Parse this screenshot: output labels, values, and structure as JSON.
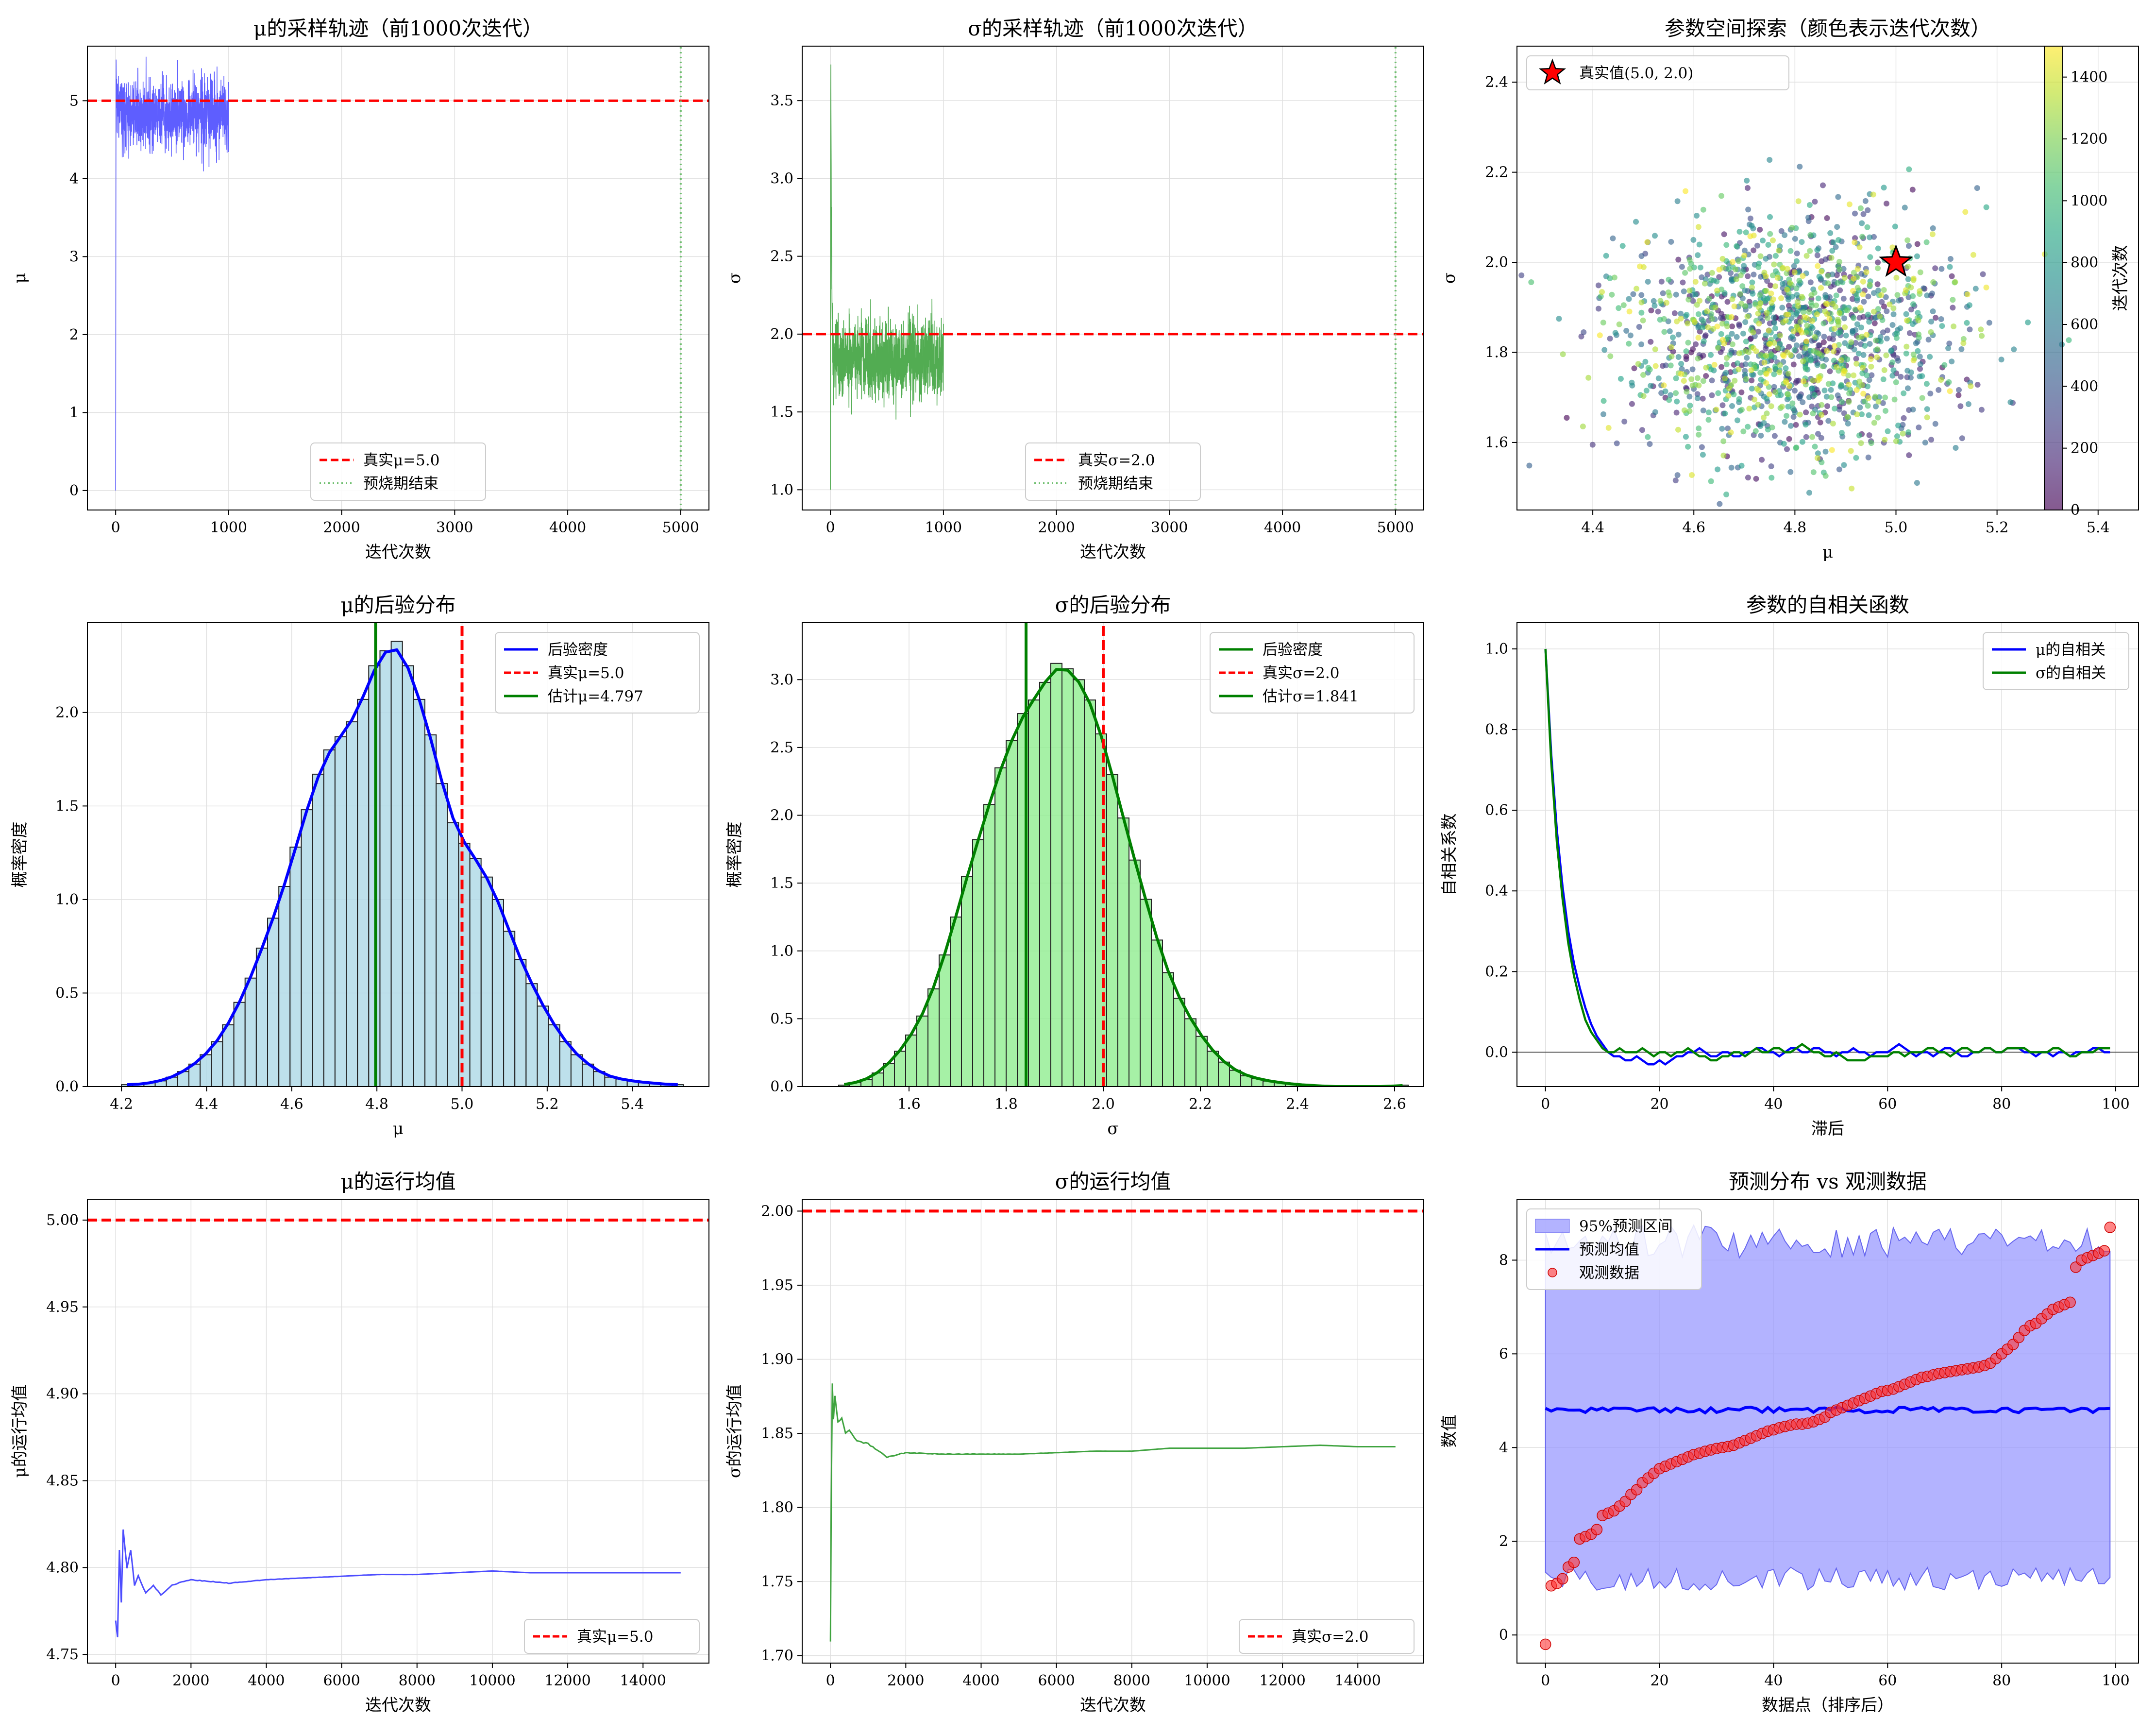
{
  "colors": {
    "mu_trace": "#4d4dff",
    "sigma_trace": "#3fa33f",
    "true_line": "#ff0000",
    "burnin_line": "#6fbf6f",
    "mu_hist": "#add8e6",
    "sigma_hist": "#90ee90",
    "mu_kde": "#0000ff",
    "sigma_kde": "#008000",
    "estimate": "#008000",
    "pi_fill": "#9999ff",
    "pred_mean": "#0000ff",
    "obs": "#ff3333",
    "grid": "#e0e0e0"
  },
  "chart_data": [
    {
      "id": "mu_trace",
      "type": "line",
      "title": "μ的采样轨迹（前1000次迭代）",
      "xlabel": "迭代次数",
      "ylabel": "μ",
      "xlim": [
        -250,
        5250
      ],
      "ylim": [
        -0.25,
        5.7
      ],
      "xticks": [
        0,
        1000,
        2000,
        3000,
        4000,
        5000
      ],
      "yticks": [
        0,
        1,
        2,
        3,
        4,
        5
      ],
      "grid": true,
      "series": [
        {
          "name": "",
          "kind": "trace",
          "x_range": [
            0,
            1000
          ],
          "start": 0.0,
          "rise_end": 5.2,
          "mean": 4.83,
          "spread": 0.22,
          "spikes": [
            5.42,
            4.48,
            5.28,
            4.4
          ]
        },
        {
          "name": "真实μ=5.0",
          "kind": "hline",
          "y": 5.0
        },
        {
          "name": "预烧期结束",
          "kind": "vline",
          "x": 5000
        }
      ],
      "legend_position": "lower-center"
    },
    {
      "id": "sigma_trace",
      "type": "line",
      "title": "σ的采样轨迹（前1000次迭代）",
      "xlabel": "迭代次数",
      "ylabel": "σ",
      "xlim": [
        -250,
        5250
      ],
      "ylim": [
        0.87,
        3.85
      ],
      "xticks": [
        0,
        1000,
        2000,
        3000,
        4000,
        5000
      ],
      "yticks": [
        1.0,
        1.5,
        2.0,
        2.5,
        3.0,
        3.5
      ],
      "grid": true,
      "series": [
        {
          "name": "",
          "kind": "trace",
          "x_range": [
            0,
            1000
          ],
          "start": 1.0,
          "rise_end": 3.67,
          "mean": 1.84,
          "spread": 0.13,
          "spikes": [
            2.25,
            1.5,
            2.2,
            1.55
          ]
        },
        {
          "name": "真实σ=2.0",
          "kind": "hline",
          "y": 2.0
        },
        {
          "name": "预烧期结束",
          "kind": "vline",
          "x": 5000
        }
      ],
      "legend_position": "lower-center"
    },
    {
      "id": "param_space",
      "type": "scatter",
      "title": "参数空间探索（颜色表示迭代次数）",
      "xlabel": "μ",
      "ylabel": "σ",
      "xlim": [
        4.25,
        5.48
      ],
      "ylim": [
        1.45,
        2.48
      ],
      "xticks": [
        4.4,
        4.6,
        4.8,
        5.0,
        5.2,
        5.4
      ],
      "yticks": [
        1.6,
        1.8,
        2.0,
        2.2,
        2.4
      ],
      "grid": true,
      "points": {
        "n": 1500,
        "mu_mean": 4.797,
        "mu_sd": 0.17,
        "sigma_mean": 1.841,
        "sigma_sd": 0.13
      },
      "true_point": {
        "name": "真实值(5.0, 2.0)",
        "x": 5.0,
        "y": 2.0
      },
      "colorbar": {
        "label": "迭代次数",
        "range": [
          0,
          1500
        ],
        "ticks": [
          0,
          200,
          400,
          600,
          800,
          1000,
          1200,
          1400
        ]
      },
      "legend_position": "upper-left"
    },
    {
      "id": "mu_posterior",
      "type": "bar",
      "title": "μ的后验分布",
      "xlabel": "μ",
      "ylabel": "概率密度",
      "xlim": [
        4.12,
        5.58
      ],
      "ylim": [
        0,
        2.48
      ],
      "xticks": [
        4.2,
        4.4,
        4.6,
        4.8,
        5.0,
        5.2,
        5.4
      ],
      "yticks": [
        0.0,
        0.5,
        1.0,
        1.5,
        2.0
      ],
      "grid": true,
      "bins": {
        "start": 4.2,
        "width": 0.0264
      },
      "values": [
        0.01,
        0.01,
        0.02,
        0.03,
        0.05,
        0.08,
        0.12,
        0.17,
        0.24,
        0.33,
        0.45,
        0.58,
        0.74,
        0.9,
        1.07,
        1.28,
        1.48,
        1.67,
        1.8,
        1.87,
        1.95,
        2.07,
        2.25,
        2.33,
        2.38,
        2.25,
        2.07,
        1.88,
        1.62,
        1.41,
        1.3,
        1.22,
        1.12,
        1.0,
        0.83,
        0.68,
        0.55,
        0.43,
        0.33,
        0.24,
        0.17,
        0.12,
        0.08,
        0.05,
        0.04,
        0.03,
        0.02,
        0.02,
        0.01,
        0.01
      ],
      "kde": {
        "name": "后验密度",
        "peak": 2.3,
        "center": 4.797
      },
      "true_line": {
        "name": "真实μ=5.0",
        "x": 5.0
      },
      "estimate_line": {
        "name": "估计μ=4.797",
        "x": 4.797
      },
      "legend_position": "upper-right"
    },
    {
      "id": "sigma_posterior",
      "type": "bar",
      "title": "σ的后验分布",
      "xlabel": "σ",
      "ylabel": "概率密度",
      "xlim": [
        1.38,
        2.66
      ],
      "ylim": [
        0,
        3.42
      ],
      "xticks": [
        1.6,
        1.8,
        2.0,
        2.2,
        2.4,
        2.6
      ],
      "yticks": [
        0.0,
        0.5,
        1.0,
        1.5,
        2.0,
        2.5,
        3.0
      ],
      "grid": true,
      "bins": {
        "start": 1.455,
        "width": 0.023
      },
      "values": [
        0.01,
        0.03,
        0.05,
        0.1,
        0.17,
        0.26,
        0.38,
        0.52,
        0.72,
        0.97,
        1.25,
        1.55,
        1.82,
        2.08,
        2.35,
        2.55,
        2.75,
        2.85,
        2.98,
        3.12,
        3.08,
        3.0,
        2.85,
        2.6,
        2.3,
        1.98,
        1.67,
        1.38,
        1.08,
        0.84,
        0.65,
        0.5,
        0.37,
        0.26,
        0.18,
        0.12,
        0.08,
        0.06,
        0.04,
        0.03,
        0.02,
        0.01,
        0.01,
        0.0,
        0.0,
        0.0,
        0.0,
        0.0,
        0.0,
        0.0,
        0.01
      ],
      "kde": {
        "name": "后验密度",
        "peak": 3.04,
        "center": 1.841
      },
      "true_line": {
        "name": "真实σ=2.0",
        "x": 2.0
      },
      "estimate_line": {
        "name": "估计σ=1.841",
        "x": 1.841
      },
      "legend_position": "upper-right"
    },
    {
      "id": "acf",
      "type": "line",
      "title": "参数的自相关函数",
      "xlabel": "滞后",
      "ylabel": "自相关系数",
      "xlim": [
        -5,
        104
      ],
      "ylim": [
        -0.085,
        1.065
      ],
      "xticks": [
        0,
        20,
        40,
        60,
        80,
        100
      ],
      "yticks": [
        0.0,
        0.2,
        0.4,
        0.6,
        0.8,
        1.0
      ],
      "grid": true,
      "series": [
        {
          "name": "μ的自相关",
          "color_key": "mu_kde",
          "values": [
            1.0,
            0.74,
            0.55,
            0.41,
            0.3,
            0.22,
            0.16,
            0.11,
            0.07,
            0.04,
            0.02,
            0.0,
            -0.01,
            -0.01,
            -0.02,
            -0.02,
            -0.01,
            -0.02,
            -0.03,
            -0.03,
            -0.02,
            -0.03,
            -0.02,
            -0.01,
            -0.01,
            0.0,
            0.0,
            0.01,
            0.0,
            -0.01,
            -0.01,
            0.0,
            0.0,
            -0.01,
            -0.01,
            0.0,
            0.0,
            0.01,
            0.01,
            0.0,
            0.0,
            -0.01,
            0.0,
            0.01,
            0.01,
            0.0,
            0.0,
            0.01,
            0.01,
            0.0,
            0.0,
            -0.01,
            0.0,
            0.0,
            0.01,
            0.0,
            0.0,
            -0.01,
            0.0,
            0.0,
            0.0,
            0.01,
            0.02,
            0.01,
            0.0,
            -0.01,
            0.0,
            0.0,
            -0.01,
            0.0,
            0.01,
            0.01,
            0.0,
            -0.01,
            -0.01,
            0.0,
            0.0,
            0.01,
            0.01,
            0.0,
            0.0,
            0.01,
            0.01,
            0.01,
            0.0,
            0.0,
            -0.01,
            0.0,
            0.0,
            -0.01,
            0.0,
            0.0,
            -0.01,
            0.0,
            0.0,
            0.0,
            0.01,
            0.01,
            0.0,
            0.0
          ]
        },
        {
          "name": "σ的自相关",
          "color_key": "sigma_kde",
          "values": [
            1.0,
            0.72,
            0.52,
            0.38,
            0.27,
            0.19,
            0.13,
            0.08,
            0.05,
            0.03,
            0.01,
            0.0,
            0.0,
            0.01,
            0.0,
            0.0,
            0.0,
            0.01,
            0.0,
            -0.01,
            0.0,
            0.0,
            -0.01,
            0.0,
            0.0,
            0.01,
            0.0,
            -0.01,
            -0.01,
            -0.02,
            -0.02,
            -0.01,
            -0.01,
            0.0,
            0.0,
            -0.01,
            0.0,
            0.01,
            0.0,
            0.0,
            0.01,
            0.01,
            0.0,
            0.0,
            0.01,
            0.02,
            0.01,
            0.0,
            0.0,
            -0.01,
            -0.01,
            0.0,
            -0.01,
            -0.02,
            -0.02,
            -0.02,
            -0.02,
            -0.01,
            -0.01,
            -0.01,
            -0.01,
            0.0,
            0.0,
            -0.01,
            0.0,
            0.0,
            0.0,
            0.01,
            0.01,
            0.0,
            0.0,
            -0.01,
            0.0,
            0.01,
            0.01,
            0.0,
            0.0,
            0.01,
            0.01,
            0.0,
            0.0,
            0.01,
            0.01,
            0.01,
            0.01,
            0.0,
            0.0,
            0.0,
            0.0,
            0.01,
            0.01,
            0.0,
            -0.01,
            -0.01,
            0.0,
            0.0,
            0.0,
            0.01,
            0.01,
            0.01
          ]
        }
      ],
      "zero_line": 0,
      "legend_position": "upper-right"
    },
    {
      "id": "mu_running",
      "type": "line",
      "title": "μ的运行均值",
      "xlabel": "迭代次数",
      "ylabel": "μ的运行均值",
      "xlim": [
        -750,
        15750
      ],
      "ylim": [
        4.745,
        5.012
      ],
      "xticks": [
        0,
        2000,
        4000,
        6000,
        8000,
        10000,
        12000,
        14000
      ],
      "yticks": [
        4.75,
        4.8,
        4.85,
        4.9,
        4.95,
        5.0
      ],
      "grid": true,
      "series": [
        {
          "name": "",
          "kind": "running",
          "x": [
            0,
            50,
            100,
            150,
            200,
            300,
            400,
            500,
            600,
            800,
            1000,
            1200,
            1500,
            2000,
            3000,
            4000,
            5000,
            6000,
            7000,
            8000,
            9000,
            10000,
            11000,
            12000,
            13000,
            14000,
            15000
          ],
          "values": [
            4.77,
            4.76,
            4.81,
            4.78,
            4.822,
            4.8,
            4.81,
            4.79,
            4.795,
            4.785,
            4.79,
            4.784,
            4.79,
            4.793,
            4.791,
            4.793,
            4.794,
            4.795,
            4.796,
            4.796,
            4.797,
            4.798,
            4.797,
            4.797,
            4.797,
            4.797,
            4.797
          ]
        },
        {
          "name": "真实μ=5.0",
          "kind": "hline",
          "y": 5.0
        }
      ],
      "legend_position": "lower-right"
    },
    {
      "id": "sigma_running",
      "type": "line",
      "title": "σ的运行均值",
      "xlabel": "迭代次数",
      "ylabel": "σ的运行均值",
      "xlim": [
        -750,
        15750
      ],
      "ylim": [
        1.695,
        2.008
      ],
      "xticks": [
        0,
        2000,
        4000,
        6000,
        8000,
        10000,
        12000,
        14000
      ],
      "yticks": [
        1.7,
        1.75,
        1.8,
        1.85,
        1.9,
        1.95,
        2.0
      ],
      "grid": true,
      "series": [
        {
          "name": "",
          "kind": "running",
          "x": [
            0,
            20,
            50,
            80,
            120,
            200,
            300,
            400,
            500,
            700,
            1000,
            1500,
            2000,
            3000,
            4000,
            5000,
            6000,
            7000,
            8000,
            9000,
            10000,
            11000,
            12000,
            13000,
            14000,
            15000
          ],
          "values": [
            1.71,
            1.8,
            1.884,
            1.86,
            1.875,
            1.858,
            1.86,
            1.85,
            1.852,
            1.845,
            1.843,
            1.834,
            1.837,
            1.836,
            1.836,
            1.836,
            1.837,
            1.838,
            1.838,
            1.84,
            1.84,
            1.84,
            1.841,
            1.842,
            1.841,
            1.841
          ]
        },
        {
          "name": "真实σ=2.0",
          "kind": "hline",
          "y": 2.0
        }
      ],
      "legend_position": "lower-right"
    },
    {
      "id": "predictive",
      "type": "scatter",
      "title": "预测分布 vs 观测数据",
      "xlabel": "数据点（排序后）",
      "ylabel": "数值",
      "xlim": [
        -5,
        104
      ],
      "ylim": [
        -0.6,
        9.3
      ],
      "xticks": [
        0,
        20,
        40,
        60,
        80,
        100
      ],
      "yticks": [
        0,
        2,
        4,
        6,
        8
      ],
      "grid": true,
      "interval": {
        "name": "95%预测区间",
        "lower_mean": 1.2,
        "upper_mean": 8.4
      },
      "mean_line": {
        "name": "预测均值",
        "value": 4.8
      },
      "observed": {
        "name": "观测数据",
        "values": [
          -0.2,
          1.05,
          1.1,
          1.2,
          1.45,
          1.55,
          2.05,
          2.1,
          2.15,
          2.25,
          2.55,
          2.6,
          2.65,
          2.75,
          2.85,
          3.0,
          3.1,
          3.25,
          3.35,
          3.45,
          3.55,
          3.6,
          3.65,
          3.7,
          3.75,
          3.8,
          3.85,
          3.88,
          3.92,
          3.95,
          3.98,
          4.0,
          4.02,
          4.05,
          4.1,
          4.15,
          4.2,
          4.25,
          4.3,
          4.35,
          4.38,
          4.42,
          4.45,
          4.48,
          4.5,
          4.5,
          4.52,
          4.55,
          4.6,
          4.65,
          4.75,
          4.8,
          4.85,
          4.9,
          4.95,
          5.0,
          5.05,
          5.1,
          5.15,
          5.2,
          5.22,
          5.25,
          5.3,
          5.35,
          5.4,
          5.45,
          5.5,
          5.52,
          5.55,
          5.58,
          5.6,
          5.62,
          5.64,
          5.66,
          5.68,
          5.7,
          5.72,
          5.75,
          5.8,
          5.9,
          6.0,
          6.1,
          6.2,
          6.35,
          6.5,
          6.6,
          6.65,
          6.75,
          6.85,
          6.95,
          7.0,
          7.05,
          7.1,
          7.85,
          8.0,
          8.05,
          8.1,
          8.15,
          8.2,
          8.7
        ]
      },
      "legend_position": "upper-left"
    }
  ]
}
